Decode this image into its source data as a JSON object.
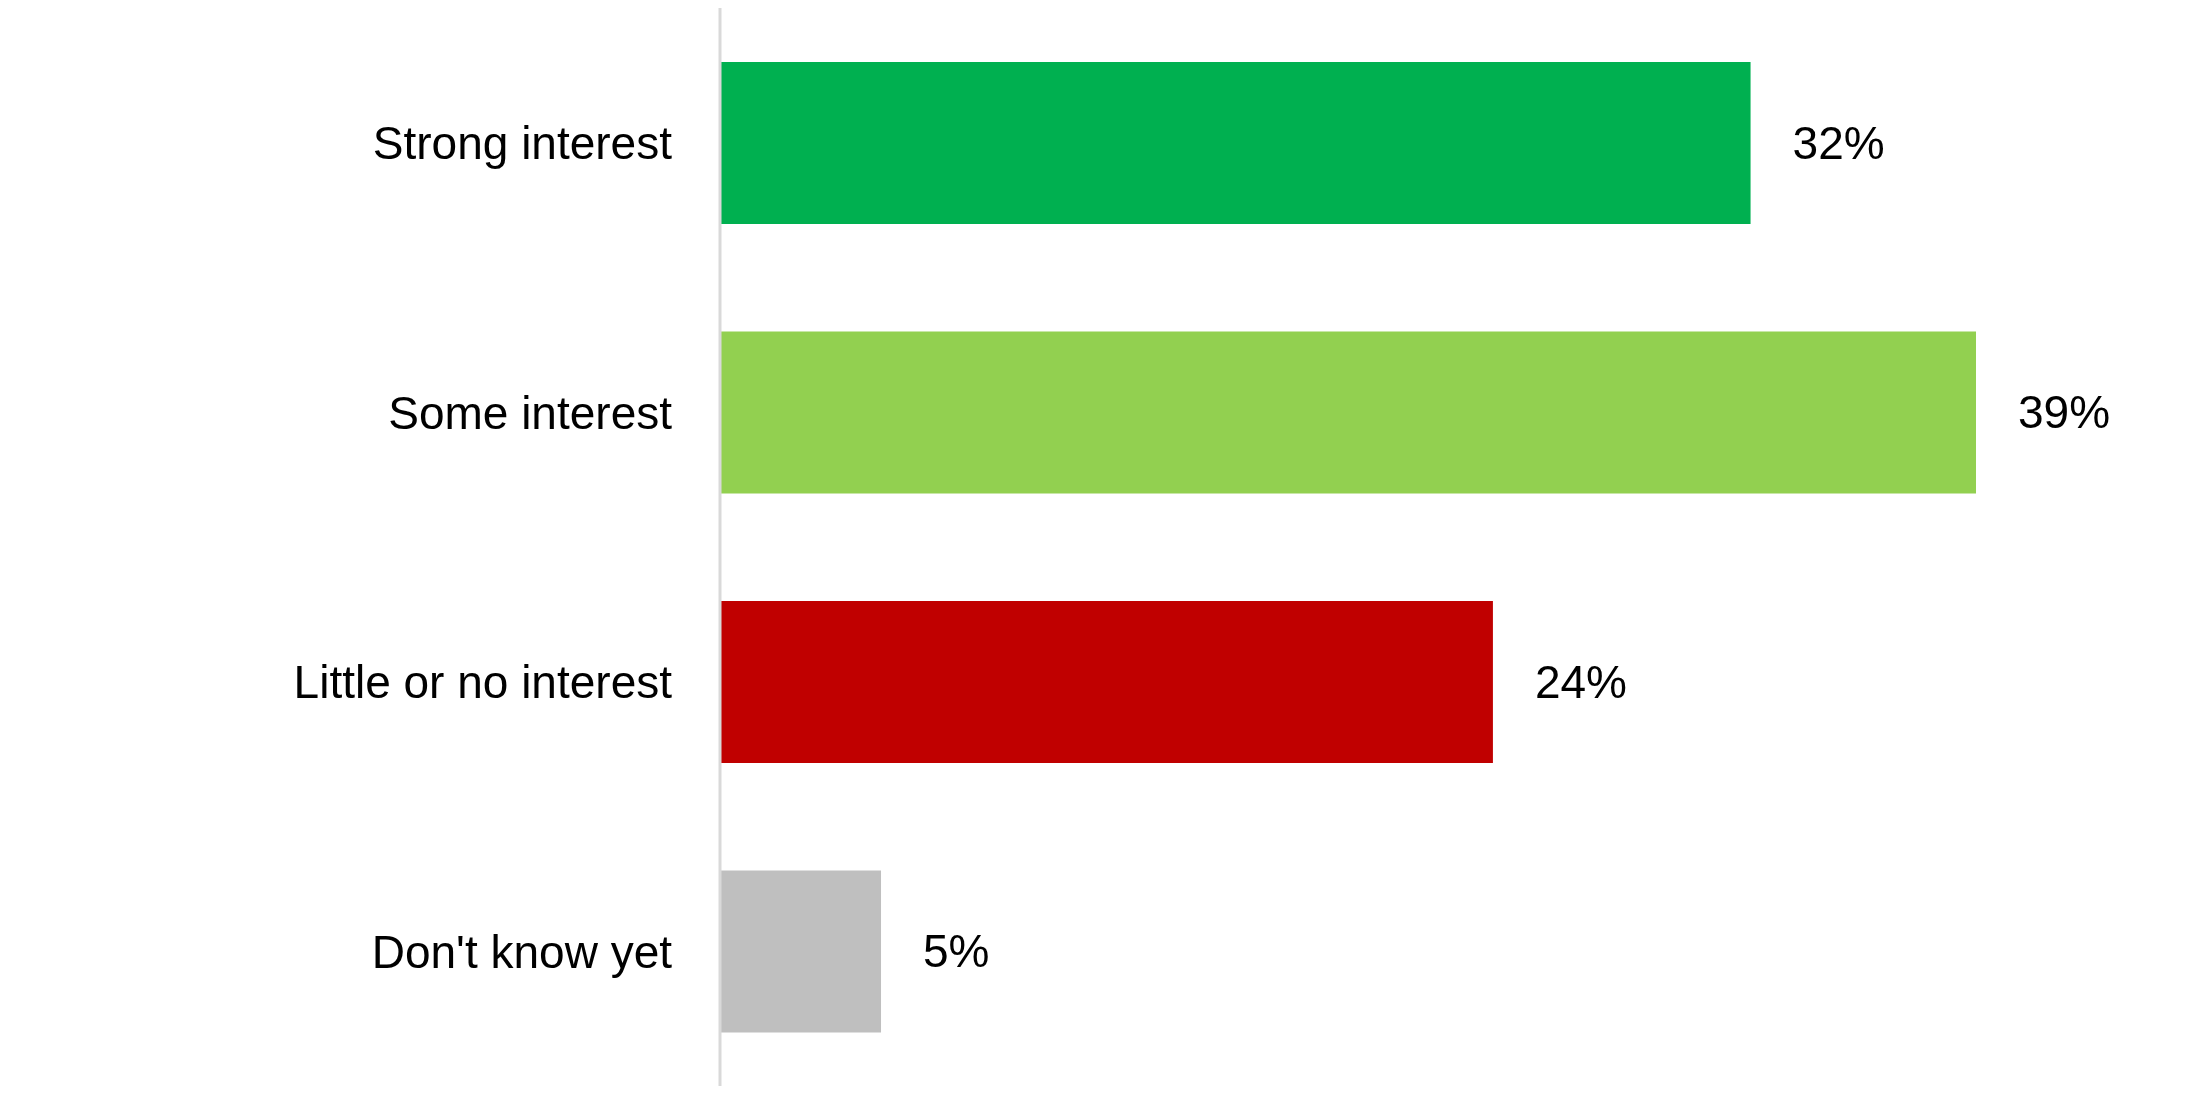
{
  "chart_data": {
    "type": "bar",
    "orientation": "horizontal",
    "categories": [
      "Strong interest",
      "Some interest",
      "Little or no interest",
      "Don't know yet"
    ],
    "values": [
      32,
      39,
      24,
      5
    ],
    "colors": [
      "#00b050",
      "#92d050",
      "#c00000",
      "#bfbfbf"
    ],
    "value_labels": [
      "32%",
      "39%",
      "24%",
      "5%"
    ],
    "grid": false,
    "legend": false
  }
}
